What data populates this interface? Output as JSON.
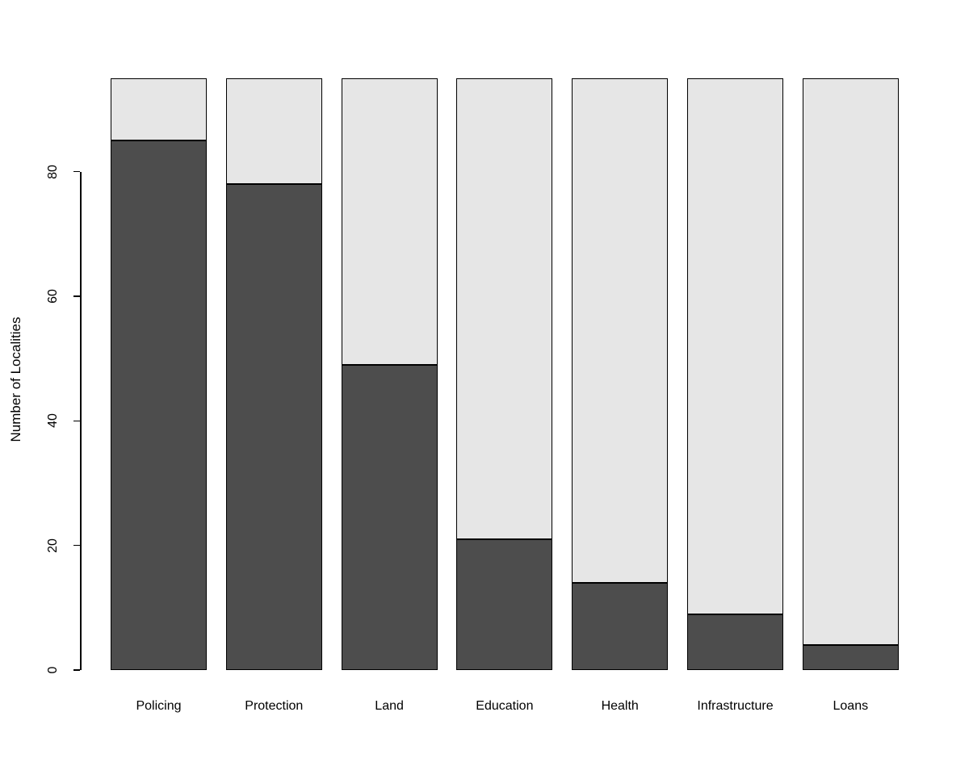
{
  "figure": {
    "background_color": "#FFFFFF",
    "axis_color": "#000000",
    "text_color": "#000000"
  },
  "chart_data": {
    "type": "bar",
    "stacked": true,
    "title": "",
    "xlabel": "",
    "ylabel": "Number of Localities",
    "categories": [
      "Policing",
      "Protection",
      "Land",
      "Education",
      "Health",
      "Infrastructure",
      "Loans"
    ],
    "series": [
      {
        "name": "dark-bottom-segment",
        "color": "#4D4D4D",
        "values": [
          85,
          78,
          49,
          21,
          14,
          9,
          4
        ]
      },
      {
        "name": "light-top-segment",
        "color": "#E6E6E6",
        "values": [
          10,
          17,
          46,
          74,
          81,
          86,
          91
        ]
      }
    ],
    "bar_totals": [
      95,
      95,
      95,
      95,
      95,
      95,
      95
    ],
    "bar_border_color": "#000000",
    "yticks": [
      0,
      20,
      40,
      60,
      80
    ],
    "ylim": [
      0,
      95
    ],
    "grid": false,
    "legend": "none"
  }
}
